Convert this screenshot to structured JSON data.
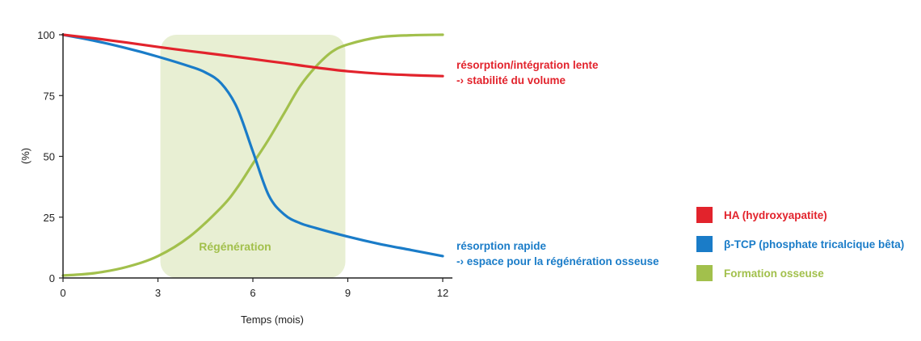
{
  "chart_data": {
    "type": "line",
    "xlabel": "Temps (mois)",
    "ylabel": "(%)",
    "xlim": [
      0,
      12
    ],
    "ylim": [
      0,
      100
    ],
    "xticks": [
      "0",
      "3",
      "6",
      "9",
      "12"
    ],
    "yticks": [
      "0",
      "25",
      "50",
      "75",
      "100"
    ],
    "grid": false,
    "legend_position": "right",
    "highlight": {
      "label": "Régénération",
      "x_range": [
        3,
        9
      ],
      "y_range": [
        0,
        100
      ],
      "color": "#e8efd3",
      "label_color": "#a2c04c"
    },
    "series": [
      {
        "name": "HA (hydroxyapatite)",
        "color": "#e2232c",
        "x": [
          0,
          1,
          2,
          3,
          4,
          5,
          6,
          7,
          8,
          9,
          10,
          11,
          12
        ],
        "values": [
          100,
          98.5,
          96.8,
          95,
          93.3,
          91.7,
          90,
          88.3,
          86.5,
          85,
          84,
          83.4,
          83
        ]
      },
      {
        "name": "β-TCP (phosphate tricalcique bêta)",
        "color": "#1a7cc8",
        "x": [
          0,
          1,
          2,
          3,
          4,
          4.5,
          5,
          5.5,
          6,
          6.5,
          7,
          7.5,
          8,
          9,
          10,
          11,
          12
        ],
        "values": [
          100,
          97.5,
          94.5,
          91,
          87,
          84.5,
          80,
          70,
          52,
          34,
          26,
          22.5,
          20.5,
          17,
          14,
          11.5,
          9
        ]
      },
      {
        "name": "Formation osseuse",
        "color": "#a2c04c",
        "x": [
          0,
          1,
          2,
          3,
          4,
          5,
          5.5,
          6,
          6.5,
          7,
          7.5,
          8,
          8.5,
          9,
          10,
          11,
          12
        ],
        "values": [
          1,
          2,
          4.5,
          9,
          17,
          29,
          37,
          47,
          57,
          68,
          79,
          87,
          93,
          96,
          99,
          99.8,
          100
        ]
      }
    ],
    "annotations": [
      {
        "lines": [
          "résorption/intégration lente",
          "-› stabilité du volume"
        ],
        "color": "#e2232c"
      },
      {
        "lines": [
          "résorption rapide",
          "-› espace pour la régénération osseuse"
        ],
        "color": "#1a7cc8"
      }
    ]
  }
}
